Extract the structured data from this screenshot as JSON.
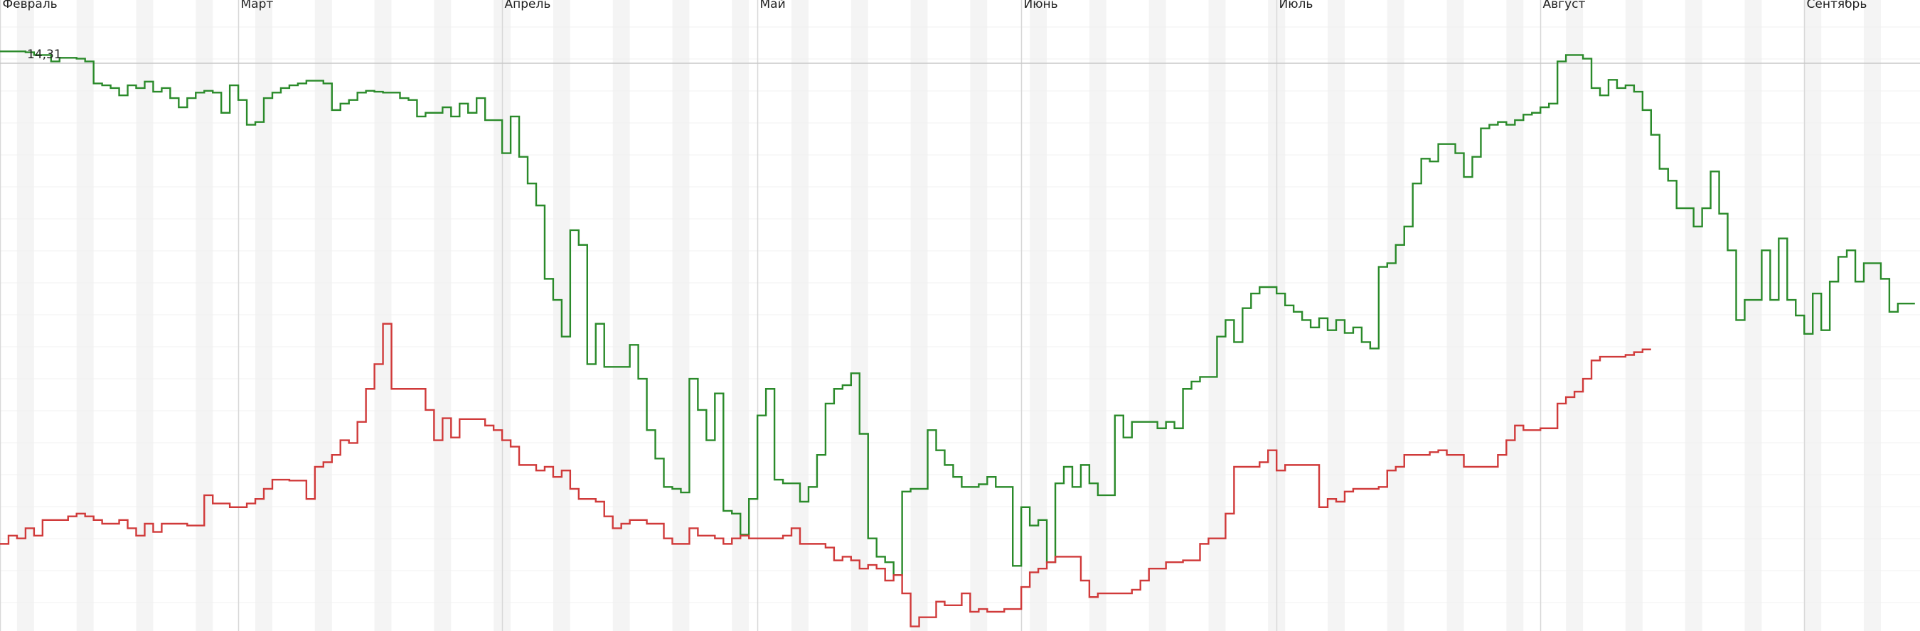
{
  "chart_data": {
    "type": "step-line",
    "categories": [
      "Февраль",
      null,
      null,
      null,
      null,
      null,
      null,
      null,
      null,
      null,
      null,
      null,
      null,
      null,
      null,
      null,
      null,
      null,
      null,
      null,
      null,
      null,
      null,
      null,
      null,
      null,
      null,
      null,
      "Март",
      null,
      null,
      null,
      null,
      null,
      null,
      null,
      null,
      null,
      null,
      null,
      null,
      null,
      null,
      null,
      null,
      null,
      null,
      null,
      null,
      null,
      null,
      null,
      null,
      null,
      null,
      null,
      null,
      null,
      null,
      "Апрель",
      null,
      null,
      null,
      null,
      null,
      null,
      null,
      null,
      null,
      null,
      null,
      null,
      null,
      null,
      null,
      null,
      null,
      null,
      null,
      null,
      null,
      null,
      null,
      null,
      null,
      null,
      null,
      null,
      null,
      "Май",
      null,
      null,
      null,
      null,
      null,
      null,
      null,
      null,
      null,
      null,
      null,
      null,
      null,
      null,
      null,
      null,
      null,
      null,
      null,
      null,
      null,
      null,
      null,
      null,
      null,
      null,
      null,
      null,
      null,
      null,
      "Июнь",
      null,
      null,
      null,
      null,
      null,
      null,
      null,
      null,
      null,
      null,
      null,
      null,
      null,
      null,
      null,
      null,
      null,
      null,
      null,
      null,
      null,
      null,
      null,
      null,
      null,
      null,
      null,
      null,
      null,
      "Июль",
      null,
      null,
      null,
      null,
      null,
      null,
      null,
      null,
      null,
      null,
      null,
      null,
      null,
      null,
      null,
      null,
      null,
      null,
      null,
      null,
      null,
      null,
      null,
      null,
      null,
      null,
      null,
      null,
      null,
      null,
      "Август",
      null,
      null,
      null,
      null,
      null,
      null,
      null,
      null,
      null,
      null,
      null,
      null,
      null,
      null,
      null,
      null,
      null,
      null,
      null,
      null,
      null,
      null,
      null,
      null,
      null,
      null,
      null,
      null,
      null,
      null,
      "Сентябрь",
      null,
      null,
      null,
      null,
      null,
      null,
      null,
      null,
      null,
      null,
      null,
      null
    ],
    "series": [
      {
        "color": "#2a8a2a",
        "values": [
          14.44,
          14.44,
          14.44,
          14.43,
          14.4,
          14.4,
          14.33,
          14.37,
          14.37,
          14.36,
          14.33,
          14.09,
          14.07,
          14.04,
          13.96,
          14.07,
          14.04,
          14.11,
          14.0,
          14.04,
          13.93,
          13.83,
          13.93,
          13.99,
          14.01,
          13.99,
          13.77,
          14.07,
          13.91,
          13.64,
          13.67,
          13.93,
          13.99,
          14.04,
          14.07,
          14.09,
          14.12,
          14.12,
          14.09,
          13.8,
          13.87,
          13.91,
          13.99,
          14.01,
          14.0,
          13.99,
          13.99,
          13.93,
          13.91,
          13.73,
          13.77,
          13.77,
          13.83,
          13.73,
          13.87,
          13.77,
          13.93,
          13.69,
          13.69,
          13.33,
          13.73,
          13.29,
          13.0,
          12.76,
          11.96,
          11.73,
          11.33,
          12.49,
          12.33,
          11.03,
          11.47,
          11.0,
          11.0,
          11.0,
          11.24,
          10.87,
          10.31,
          10.0,
          9.69,
          9.67,
          9.63,
          10.87,
          10.53,
          10.2,
          10.71,
          9.43,
          9.4,
          9.17,
          9.56,
          10.47,
          10.76,
          9.77,
          9.73,
          9.73,
          9.53,
          9.69,
          10.04,
          10.6,
          10.76,
          10.8,
          10.93,
          10.27,
          9.13,
          8.93,
          8.87,
          8.73,
          9.64,
          9.67,
          9.67,
          10.31,
          10.09,
          9.93,
          9.8,
          9.69,
          9.69,
          9.72,
          9.8,
          9.69,
          9.69,
          8.83,
          9.47,
          9.27,
          9.33,
          8.87,
          9.73,
          9.91,
          9.69,
          9.93,
          9.73,
          9.6,
          9.6,
          10.47,
          10.23,
          10.4,
          10.4,
          10.4,
          10.33,
          10.4,
          10.33,
          10.76,
          10.84,
          10.89,
          10.89,
          11.33,
          11.51,
          11.27,
          11.64,
          11.8,
          11.87,
          11.87,
          11.8,
          11.67,
          11.6,
          11.51,
          11.43,
          11.53,
          11.4,
          11.51,
          11.37,
          11.43,
          11.27,
          11.2,
          12.09,
          12.13,
          12.33,
          12.53,
          13.0,
          13.27,
          13.24,
          13.43,
          13.43,
          13.33,
          13.07,
          13.29,
          13.6,
          13.64,
          13.67,
          13.64,
          13.69,
          13.75,
          13.77,
          13.83,
          13.87,
          14.33,
          14.4,
          14.4,
          14.36,
          14.04,
          13.96,
          14.13,
          14.04,
          14.07,
          14.0,
          13.8,
          13.53,
          13.16,
          13.03,
          12.73,
          12.73,
          12.53,
          12.73,
          13.13,
          12.67,
          12.27,
          11.51,
          11.73,
          11.73,
          12.27,
          11.73,
          12.4,
          11.73,
          11.56,
          11.36,
          11.8,
          11.4,
          11.93,
          12.2,
          12.27,
          11.93,
          12.13,
          12.13,
          11.96,
          11.6,
          11.69,
          11.69
        ]
      },
      {
        "color": "#d03a3a",
        "values": [
          9.07,
          9.16,
          9.13,
          9.24,
          9.16,
          9.33,
          9.33,
          9.33,
          9.37,
          9.4,
          9.37,
          9.33,
          9.29,
          9.29,
          9.33,
          9.24,
          9.16,
          9.29,
          9.2,
          9.29,
          9.29,
          9.29,
          9.27,
          9.27,
          9.6,
          9.51,
          9.51,
          9.47,
          9.47,
          9.51,
          9.56,
          9.67,
          9.77,
          9.77,
          9.76,
          9.76,
          9.56,
          9.91,
          9.96,
          10.04,
          10.2,
          10.17,
          10.4,
          10.76,
          11.03,
          11.47,
          10.76,
          10.76,
          10.76,
          10.76,
          10.53,
          10.2,
          10.44,
          10.23,
          10.43,
          10.43,
          10.43,
          10.36,
          10.31,
          10.2,
          10.13,
          9.93,
          9.93,
          9.87,
          9.91,
          9.8,
          9.87,
          9.67,
          9.56,
          9.56,
          9.53,
          9.37,
          9.24,
          9.29,
          9.33,
          9.33,
          9.29,
          9.29,
          9.13,
          9.07,
          9.07,
          9.24,
          9.16,
          9.16,
          9.13,
          9.07,
          9.13,
          9.16,
          9.13,
          9.13,
          9.13,
          9.13,
          9.16,
          9.24,
          9.07,
          9.07,
          9.07,
          9.03,
          8.89,
          8.93,
          8.89,
          8.8,
          8.84,
          8.8,
          8.67,
          8.73,
          8.53,
          8.17,
          8.27,
          8.27,
          8.44,
          8.4,
          8.4,
          8.53,
          8.33,
          8.36,
          8.33,
          8.33,
          8.36,
          8.36,
          8.6,
          8.76,
          8.8,
          8.87,
          8.93,
          8.93,
          8.93,
          8.67,
          8.49,
          8.53,
          8.53,
          8.53,
          8.53,
          8.57,
          8.67,
          8.8,
          8.8,
          8.87,
          8.87,
          8.89,
          8.89,
          9.07,
          9.13,
          9.13,
          9.4,
          9.91,
          9.91,
          9.91,
          9.96,
          10.09,
          9.87,
          9.93,
          9.93,
          9.93,
          9.93,
          9.47,
          9.56,
          9.53,
          9.64,
          9.67,
          9.67,
          9.67,
          9.69,
          9.87,
          9.91,
          10.04,
          10.04,
          10.04,
          10.07,
          10.09,
          10.04,
          10.04,
          9.91,
          9.91,
          9.91,
          9.91,
          10.04,
          10.2,
          10.36,
          10.31,
          10.31,
          10.33,
          10.33,
          10.6,
          10.67,
          10.73,
          10.87,
          11.07,
          11.11,
          11.11,
          11.11,
          11.13,
          11.16,
          11.19,
          null,
          null,
          null,
          null,
          null,
          null,
          null,
          null,
          null,
          null,
          null,
          null,
          null,
          null,
          null,
          null,
          null,
          null,
          null,
          null,
          null,
          null,
          null,
          null,
          null,
          null,
          null,
          null,
          null,
          null,
          null
        ]
      }
    ],
    "ylim": [
      8.12,
      15
    ],
    "ref_line": {
      "value": 14.31,
      "label": "14,31"
    }
  }
}
